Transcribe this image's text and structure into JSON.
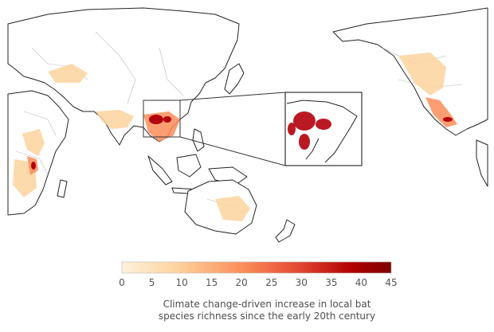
{
  "map": {
    "projection": "Pacific-centered world map",
    "land_color": "#ffffff",
    "coast_color": "#222222",
    "border_color": "#bbbbbb",
    "hotspot_color": "#b3000c",
    "inset_region": "Southeast Asia (Indochina)"
  },
  "legend": {
    "colormap": [
      "#fdf1dd",
      "#fdd49e",
      "#fc8d59",
      "#e34a33",
      "#b30000",
      "#7f0000"
    ],
    "ticks": [
      "0",
      "5",
      "10",
      "15",
      "20",
      "25",
      "30",
      "35",
      "40",
      "45"
    ],
    "range": [
      0,
      45
    ],
    "caption_line1": "Climate change-driven increase in local bat",
    "caption_line2": "species richness since the early 20th century"
  }
}
